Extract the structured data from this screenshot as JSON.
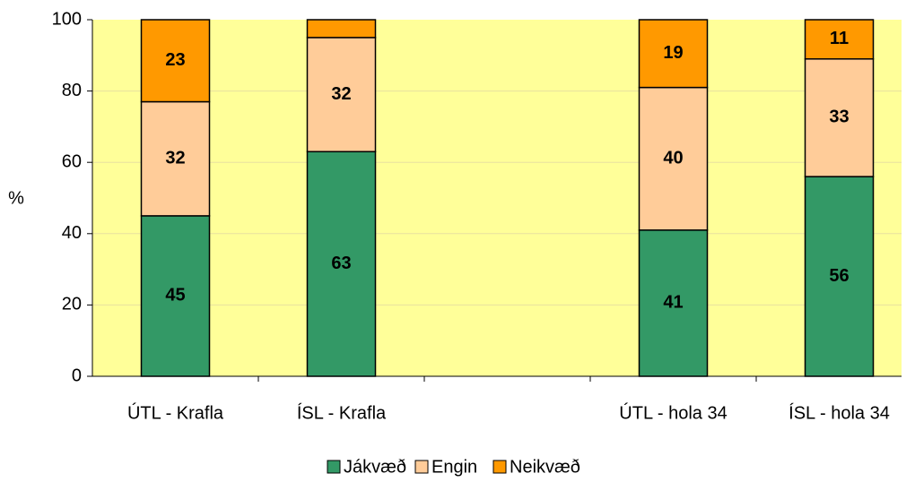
{
  "chart_data": {
    "type": "stacked_bar",
    "categories": [
      "ÚTL - Krafla",
      "ÍSL - Krafla",
      null,
      "ÚTL - hola 34",
      "ÍSL - hola 34"
    ],
    "series": [
      {
        "name": "Jákvæð",
        "color": "#339966",
        "values": [
          45,
          63,
          null,
          41,
          56
        ]
      },
      {
        "name": "Engin",
        "color": "#ffcc99",
        "values": [
          32,
          32,
          null,
          40,
          33
        ]
      },
      {
        "name": "Neikvæð",
        "color": "#ff9900",
        "values": [
          23,
          5,
          null,
          19,
          11
        ]
      }
    ],
    "ylabel": "%",
    "ylim": [
      0,
      100
    ],
    "yticks": [
      0,
      20,
      40,
      60,
      80,
      100
    ],
    "grid": true,
    "legend": "bottom"
  }
}
